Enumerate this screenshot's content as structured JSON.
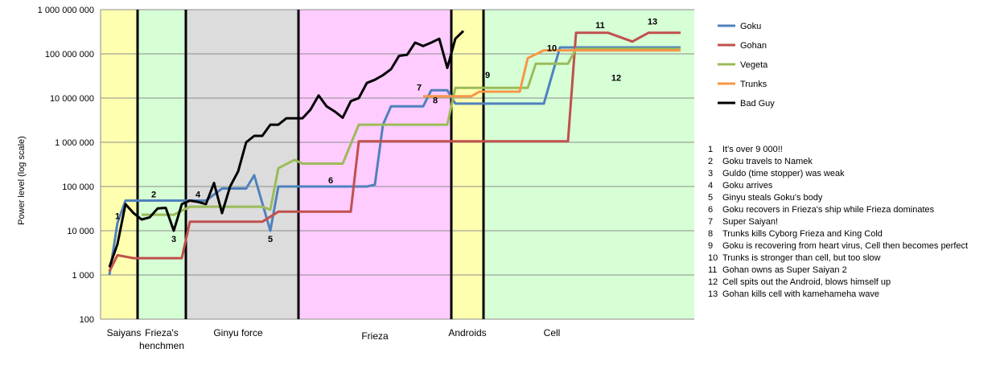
{
  "chart_data": {
    "type": "line",
    "title": "",
    "ylabel": "Power level (log scale)",
    "xlabel": "",
    "y_scale": "log",
    "ylim": [
      100,
      1000000000
    ],
    "xlim": [
      0,
      72
    ],
    "y_ticks": [
      {
        "value": 100,
        "label": "100"
      },
      {
        "value": 1000,
        "label": "1 000"
      },
      {
        "value": 10000,
        "label": "10 000"
      },
      {
        "value": 100000,
        "label": "100 000"
      },
      {
        "value": 1000000,
        "label": "1 000 000"
      },
      {
        "value": 10000000,
        "label": "10 000 000"
      },
      {
        "value": 100000000,
        "label": "100 000 000"
      },
      {
        "value": 1000000000,
        "label": "1 000 000 000"
      }
    ],
    "grid": true,
    "legend_position": "top-right",
    "sagas": [
      {
        "label": "Saiyans",
        "lines": [
          "Saiyans"
        ],
        "start": 0,
        "end": 3.5,
        "color": "#ffffb0",
        "label_x": 1.8
      },
      {
        "label": "Frieza's henchmen",
        "lines": [
          "Frieza's",
          "henchmen"
        ],
        "start": 3.5,
        "end": 9.5,
        "color": "#d6ffd6",
        "label_x": 6.5
      },
      {
        "label": "Ginyu force",
        "lines": [
          "Ginyu force"
        ],
        "start": 9.5,
        "end": 23.5,
        "color": "#dcdcdc",
        "label_x": 16
      },
      {
        "label": "Frieza",
        "lines": [
          "Frieza"
        ],
        "start": 23.5,
        "end": 42.5,
        "color": "#ffccff",
        "label_x": 33
      },
      {
        "label": "Androids",
        "lines": [
          "Androids"
        ],
        "start": 42.5,
        "end": 46.5,
        "color": "#ffffb0",
        "label_x": 44.5
      },
      {
        "label": "Cell",
        "lines": [
          "Cell"
        ],
        "start": 46.5,
        "end": 72,
        "color": "#d6ffd6",
        "label_x": 55
      }
    ],
    "saga_dividers": [
      3.5,
      9.5,
      23.5,
      42.5,
      46.5
    ],
    "series": [
      {
        "name": "Goku",
        "color": "#4f81bd",
        "points": [
          [
            0,
            1000
          ],
          [
            1,
            15000
          ],
          [
            2,
            48000
          ],
          [
            3,
            48000
          ],
          [
            9,
            48000
          ],
          [
            12,
            48000
          ],
          [
            14,
            90000
          ],
          [
            17,
            90000
          ],
          [
            18,
            180000
          ],
          [
            20,
            10000
          ],
          [
            21,
            100000
          ],
          [
            25,
            100000
          ],
          [
            32,
            100000
          ],
          [
            33,
            110000
          ],
          [
            34,
            2500000
          ],
          [
            35,
            6500000
          ],
          [
            37,
            6500000
          ],
          [
            39,
            6500000
          ],
          [
            40,
            15000000
          ],
          [
            42,
            15000000
          ],
          [
            43,
            7500000
          ],
          [
            48,
            7500000
          ],
          [
            54,
            7500000
          ],
          [
            56,
            140000000
          ],
          [
            60,
            140000000
          ],
          [
            71,
            140000000
          ]
        ]
      },
      {
        "name": "Gohan",
        "color": "#c0504d",
        "points": [
          [
            0,
            1200
          ],
          [
            1,
            2800
          ],
          [
            3,
            2400
          ],
          [
            9,
            2400
          ],
          [
            10,
            16000
          ],
          [
            15,
            16000
          ],
          [
            19,
            16000
          ],
          [
            21,
            27000
          ],
          [
            30,
            27000
          ],
          [
            31,
            1050000
          ],
          [
            39,
            1050000
          ],
          [
            42,
            1050000
          ],
          [
            48,
            1050000
          ],
          [
            57,
            1050000
          ],
          [
            58,
            300000000
          ],
          [
            62,
            300000000
          ],
          [
            65,
            190000000
          ],
          [
            67,
            300000000
          ],
          [
            71,
            300000000
          ]
        ]
      },
      {
        "name": "Vegeta",
        "color": "#9bbb59",
        "points": [
          [
            4,
            23000
          ],
          [
            8,
            23000
          ],
          [
            10,
            35000
          ],
          [
            13,
            35000
          ],
          [
            19,
            35000
          ],
          [
            20,
            30000
          ],
          [
            21,
            260000
          ],
          [
            23,
            400000
          ],
          [
            24,
            330000
          ],
          [
            29,
            330000
          ],
          [
            31,
            2500000
          ],
          [
            35,
            2500000
          ],
          [
            39,
            2500000
          ],
          [
            42,
            2500000
          ],
          [
            43,
            17000000
          ],
          [
            46,
            17000000
          ],
          [
            52,
            17000000
          ],
          [
            53,
            60000000
          ],
          [
            57,
            60000000
          ],
          [
            58,
            130000000
          ],
          [
            62,
            130000000
          ],
          [
            71,
            130000000
          ]
        ]
      },
      {
        "name": "Trunks",
        "color": "#f79646",
        "points": [
          [
            39,
            11000000
          ],
          [
            42,
            11000000
          ],
          [
            43,
            11000000
          ],
          [
            45,
            11000000
          ],
          [
            46,
            14000000
          ],
          [
            51,
            14000000
          ],
          [
            52,
            80000000
          ],
          [
            54,
            120000000
          ],
          [
            71,
            120000000
          ]
        ]
      },
      {
        "name": "Bad Guy",
        "color": "#000000",
        "points": [
          [
            0,
            1500
          ],
          [
            1,
            5000
          ],
          [
            2,
            40000
          ],
          [
            3,
            25000
          ],
          [
            4,
            18000
          ],
          [
            5,
            20000
          ],
          [
            6,
            32000
          ],
          [
            7,
            33000
          ],
          [
            8,
            10000
          ],
          [
            9,
            40000
          ],
          [
            10,
            48000
          ],
          [
            11,
            45000
          ],
          [
            12,
            40000
          ],
          [
            13,
            120000
          ],
          [
            14,
            25000
          ],
          [
            15,
            100000
          ],
          [
            16,
            220000
          ],
          [
            17,
            1000000
          ],
          [
            18,
            1400000
          ],
          [
            19,
            1400000
          ],
          [
            20,
            2500000
          ],
          [
            21,
            2500000
          ],
          [
            22,
            3500000
          ],
          [
            23,
            3500000
          ],
          [
            24,
            3500000
          ],
          [
            25,
            5500000
          ],
          [
            26,
            11500000
          ],
          [
            27,
            6500000
          ],
          [
            28,
            5000000
          ],
          [
            29,
            3600000
          ],
          [
            30,
            8500000
          ],
          [
            31,
            10000000
          ],
          [
            32,
            22000000
          ],
          [
            33,
            26000000
          ],
          [
            34,
            33000000
          ],
          [
            35,
            45000000
          ],
          [
            36,
            90000000
          ],
          [
            37,
            95000000
          ],
          [
            38,
            180000000
          ],
          [
            39,
            150000000
          ],
          [
            40,
            180000000
          ],
          [
            41,
            220000000
          ],
          [
            42,
            48000000
          ],
          [
            43,
            220000000
          ],
          [
            44,
            330000000
          ]
        ]
      }
    ],
    "x_map_note": "",
    "markers": [
      {
        "label": "1",
        "x": 1,
        "y": 17000,
        "dy": -2
      },
      {
        "label": "2",
        "x": 5.5,
        "y": 48000,
        "dy": -4
      },
      {
        "label": "3",
        "x": 8,
        "y": 10000,
        "dy": 14
      },
      {
        "label": "4",
        "x": 11,
        "y": 48000,
        "dy": -4
      },
      {
        "label": "5",
        "x": 20,
        "y": 10000,
        "dy": 14
      },
      {
        "label": "6",
        "x": 27.5,
        "y": 100000,
        "dy": -4
      },
      {
        "label": "7",
        "x": 38.5,
        "y": 11500000,
        "dy": -6
      },
      {
        "label": "8",
        "x": 40.5,
        "y": 6500000,
        "dy": -4
      },
      {
        "label": "9",
        "x": 47,
        "y": 22000000,
        "dy": -6
      },
      {
        "label": "10",
        "x": 55,
        "y": 90000000,
        "dy": -6
      },
      {
        "label": "11",
        "x": 61,
        "y": 300000000,
        "dy": -6
      },
      {
        "label": "12",
        "x": 63,
        "y": 48000000,
        "dy": 16
      },
      {
        "label": "13",
        "x": 67.5,
        "y": 330000000,
        "dy": -8
      }
    ]
  },
  "legend": [
    {
      "label": "Goku",
      "color": "#4f81bd"
    },
    {
      "label": "Gohan",
      "color": "#c0504d"
    },
    {
      "label": "Vegeta",
      "color": "#9bbb59"
    },
    {
      "label": "Trunks",
      "color": "#f79646"
    },
    {
      "label": "Bad Guy",
      "color": "#000000"
    }
  ],
  "notes": [
    {
      "num": "1",
      "text": "It's over 9 000!!"
    },
    {
      "num": "2",
      "text": "Goku travels to Namek"
    },
    {
      "num": "3",
      "text": "Guldo (time stopper) was weak"
    },
    {
      "num": "4",
      "text": "Goku arrives"
    },
    {
      "num": "5",
      "text": "Ginyu steals Goku's body"
    },
    {
      "num": "6",
      "text": "Goku recovers in Frieza's ship while Frieza dominates"
    },
    {
      "num": "7",
      "text": "Super Saiyan!"
    },
    {
      "num": "8",
      "text": "Trunks kills Cyborg Frieza and King Cold"
    },
    {
      "num": "9",
      "text": "Goku is recovering from heart virus, Cell then becomes perfect"
    },
    {
      "num": "10",
      "text": "Trunks is stronger than cell, but too slow"
    },
    {
      "num": "11",
      "text": "Gohan owns as Super Saiyan 2"
    },
    {
      "num": "12",
      "text": "Cell spits out the Android, blows himself up"
    },
    {
      "num": "13",
      "text": "Gohan kills cell with kamehameha wave"
    }
  ]
}
